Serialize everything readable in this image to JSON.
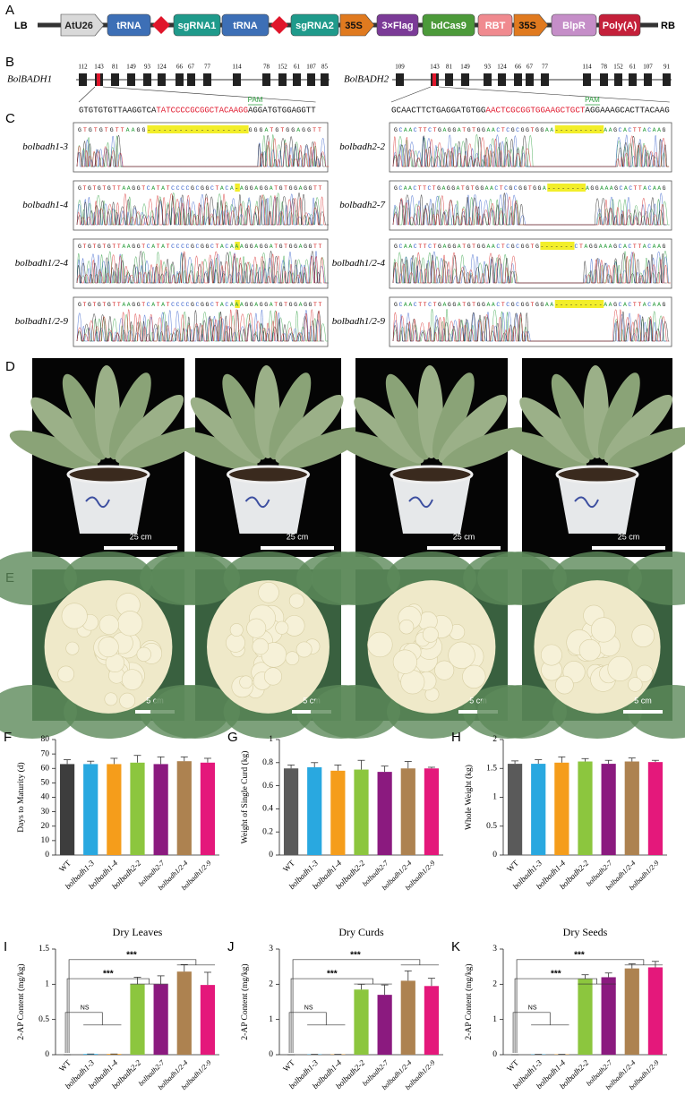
{
  "construct": {
    "label": "A",
    "left_border": "LB",
    "right_border": "RB",
    "elements": [
      "AtU26",
      "tRNA",
      "sgRNA1",
      "tRNA",
      "sgRNA2",
      "35S",
      "3×Flag",
      "bdCas9",
      "RBT",
      "35S",
      "BlpR",
      "Poly(A)"
    ]
  },
  "genes": {
    "label": "B",
    "items": [
      {
        "name": "BolBADH1",
        "exons": [
          112,
          143,
          81,
          149,
          93,
          124,
          66,
          67,
          77,
          114,
          78,
          152,
          61,
          107,
          85
        ],
        "sequence": {
          "before": "GTGTGTGTTAAGGTCA",
          "target": "TATCCCCGCGGCTACAAGG",
          "after": "AGGATGTGGAGGTT"
        },
        "pam": "PAM"
      },
      {
        "name": "BolBADH2",
        "exons": [
          109,
          143,
          81,
          149,
          93,
          124,
          66,
          67,
          77,
          114,
          78,
          152,
          61,
          107,
          91
        ],
        "sequence": {
          "before": "GCAACTTCTGAGGATGTGG",
          "target": "AACTCGCGGTGGAAGCTGCT",
          "after": "AGGAAAGCACTTACAAG"
        },
        "pam": "PAM"
      }
    ]
  },
  "sequencing": {
    "label": "C",
    "columns": [
      [
        {
          "name": "bolbadh1-3",
          "before": "GTGTGTGTTAAGG",
          "highlight": "-------------------",
          "after": "GGGATGTGGAGGTT"
        },
        {
          "name": "bolbadh1-4",
          "before": "GTGTGTGTTAAGGTCATATCCCCGCGGCTACA",
          "highlight": "-",
          "after": "AGGAGGATGTGGAGGTT"
        },
        {
          "name": "bolbadh1/2-4",
          "before": "GTGTGTGTTAAGGTCATATCCCCGCGGCTACA",
          "highlight": "A",
          "after": "AGGAGGATGTGGAGGTT"
        },
        {
          "name": "bolbadh1/2-9",
          "before": "GTGTGTGTTAAGGTCATATCCCCGCGGCTACA",
          "highlight": "A",
          "after": "AGGAGGATGTGGAGGTT"
        }
      ],
      [
        {
          "name": "bolbadh2-2",
          "before": "GCAACTTCTGAGGATGTGGAACTCGCGGTGGAA",
          "highlight": "----------",
          "after": "AAGCACTTACAAG"
        },
        {
          "name": "bolbadh2-7",
          "before": "GCAACTTCTGAGGATGTGGAACTCGCGGTGGA",
          "highlight": "--------",
          "after": "AGGAAAGCACTTACAAG"
        },
        {
          "name": "bolbadh1/2-4",
          "before": "GCAACTTCTGAGGATGTGGAACTCGCGGTG",
          "highlight": "-------",
          "after": "CTAGGAAAGCACTTACAAG"
        },
        {
          "name": "bolbadh1/2-9",
          "before": "GCAACTTCTGAGGATGTGGAACTCGCGGTGGAA",
          "highlight": "----------",
          "after": "AAGCACTTACAAG"
        }
      ]
    ]
  },
  "plants": {
    "label": "D",
    "scale_bars": [
      "25 cm",
      "25 cm",
      "25 cm",
      "25 cm"
    ]
  },
  "curds": {
    "label": "E",
    "scale_bars": [
      "5 cm",
      "5 cm",
      "5 cm",
      "5 cm"
    ]
  },
  "chart_data": [
    {
      "type": "bar",
      "panel_label": "F",
      "y_label": "Days to Maturity (d)",
      "categories": [
        "WT",
        "bolbadh1-3",
        "bolbadh1-4",
        "bolbadh2-2",
        "bolbadh2-7",
        "bolbadh1/2-4",
        "bolbadh1/2-9"
      ],
      "series": [
        {
          "values": [
            63,
            63,
            63,
            64,
            63,
            65,
            64
          ],
          "errors": [
            3,
            2,
            4,
            5,
            5,
            3,
            3
          ]
        }
      ],
      "colors": [
        "#3d3d3d",
        "#29a8e0",
        "#f59d1b",
        "#8cc63e",
        "#8b1a7f",
        "#ad8250",
        "#e4187b"
      ],
      "ylim": [
        0,
        80
      ],
      "yticks": [
        0,
        10,
        20,
        30,
        40,
        50,
        60,
        70,
        80
      ]
    },
    {
      "type": "bar",
      "panel_label": "G",
      "y_label": "Weight of Single Curd (kg)",
      "categories": [
        "WT",
        "bolbadh1-3",
        "bolbadh1-4",
        "bolbadh2-2",
        "bolbadh2-7",
        "bolbadh1/2-4",
        "bolbadh1/2-9"
      ],
      "series": [
        {
          "values": [
            0.75,
            0.76,
            0.73,
            0.74,
            0.72,
            0.75,
            0.75
          ],
          "errors": [
            0.03,
            0.04,
            0.05,
            0.08,
            0.05,
            0.06,
            0.01
          ]
        }
      ],
      "colors": [
        "#5a5a5a",
        "#29a8e0",
        "#f59d1b",
        "#8cc63e",
        "#8b1a7f",
        "#ad8250",
        "#e4187b"
      ],
      "ylim": [
        0,
        1
      ],
      "yticks": [
        0,
        0.2,
        0.4,
        0.6,
        0.8,
        1
      ]
    },
    {
      "type": "bar",
      "panel_label": "H",
      "y_label": "Whole Weight (kg)",
      "categories": [
        "WT",
        "bolbadh1-3",
        "bolbadh1-4",
        "bolbadh2-2",
        "bolbadh2-7",
        "bolbadh1/2-4",
        "bolbadh1/2-9"
      ],
      "series": [
        {
          "values": [
            1.58,
            1.58,
            1.6,
            1.62,
            1.58,
            1.62,
            1.61
          ],
          "errors": [
            0.05,
            0.07,
            0.1,
            0.05,
            0.06,
            0.06,
            0.03
          ]
        }
      ],
      "colors": [
        "#5a5a5a",
        "#29a8e0",
        "#f59d1b",
        "#8cc63e",
        "#8b1a7f",
        "#ad8250",
        "#e4187b"
      ],
      "ylim": [
        0,
        2
      ],
      "yticks": [
        0,
        0.5,
        1,
        1.5,
        2
      ]
    },
    {
      "type": "bar",
      "panel_label": "I",
      "title": "Dry Leaves",
      "y_label": "2-AP Content (mg/kg)",
      "categories": [
        "WT",
        "bolbadh1-3",
        "bolbadh1-4",
        "bolbadh2-2",
        "bolbadh2-7",
        "bolbadh1/2-4",
        "bolbadh1/2-9"
      ],
      "series": [
        {
          "values": [
            0,
            0.01,
            0.01,
            1.0,
            1.0,
            1.18,
            0.99
          ],
          "errors": [
            0,
            0,
            0,
            0.1,
            0.12,
            0.1,
            0.18
          ]
        }
      ],
      "colors": [
        "#5a5a5a",
        "#29a8e0",
        "#f59d1b",
        "#8cc63e",
        "#8b1a7f",
        "#ad8250",
        "#e4187b"
      ],
      "ylim": [
        0,
        1.5
      ],
      "yticks": [
        0,
        0.5,
        1,
        1.5
      ],
      "annotations": [
        "NS",
        "***",
        "***"
      ]
    },
    {
      "type": "bar",
      "panel_label": "J",
      "title": "Dry Curds",
      "y_label": "2-AP Content (mg/kg)",
      "categories": [
        "WT",
        "bolbadh1-3",
        "bolbadh1-4",
        "bolbadh2-2",
        "bolbadh2-7",
        "bolbadh1/2-4",
        "bolbadh1/2-9"
      ],
      "series": [
        {
          "values": [
            0,
            0.01,
            0.01,
            1.85,
            1.7,
            2.1,
            1.95
          ],
          "errors": [
            0,
            0,
            0,
            0.15,
            0.28,
            0.28,
            0.22
          ]
        }
      ],
      "colors": [
        "#5a5a5a",
        "#29a8e0",
        "#f59d1b",
        "#8cc63e",
        "#8b1a7f",
        "#ad8250",
        "#e4187b"
      ],
      "ylim": [
        0,
        3
      ],
      "yticks": [
        0,
        1,
        2,
        3
      ],
      "annotations": [
        "NS",
        "***",
        "***"
      ]
    },
    {
      "type": "bar",
      "panel_label": "K",
      "title": "Dry Seeds",
      "y_label": "2-AP Content (mg/kg)",
      "categories": [
        "WT",
        "bolbadh1-3",
        "bolbadh1-4",
        "bolbadh2-2",
        "bolbadh2-7",
        "bolbadh1/2-4",
        "bolbadh1/2-9"
      ],
      "series": [
        {
          "values": [
            0,
            0.01,
            0.01,
            2.15,
            2.2,
            2.45,
            2.48
          ],
          "errors": [
            0,
            0,
            0,
            0.12,
            0.12,
            0.13,
            0.17
          ]
        }
      ],
      "colors": [
        "#5a5a5a",
        "#29a8e0",
        "#f59d1b",
        "#8cc63e",
        "#8b1a7f",
        "#ad8250",
        "#e4187b"
      ],
      "ylim": [
        0,
        3
      ],
      "yticks": [
        0,
        1,
        2,
        3
      ],
      "annotations": [
        "NS",
        "***",
        "***"
      ]
    }
  ]
}
